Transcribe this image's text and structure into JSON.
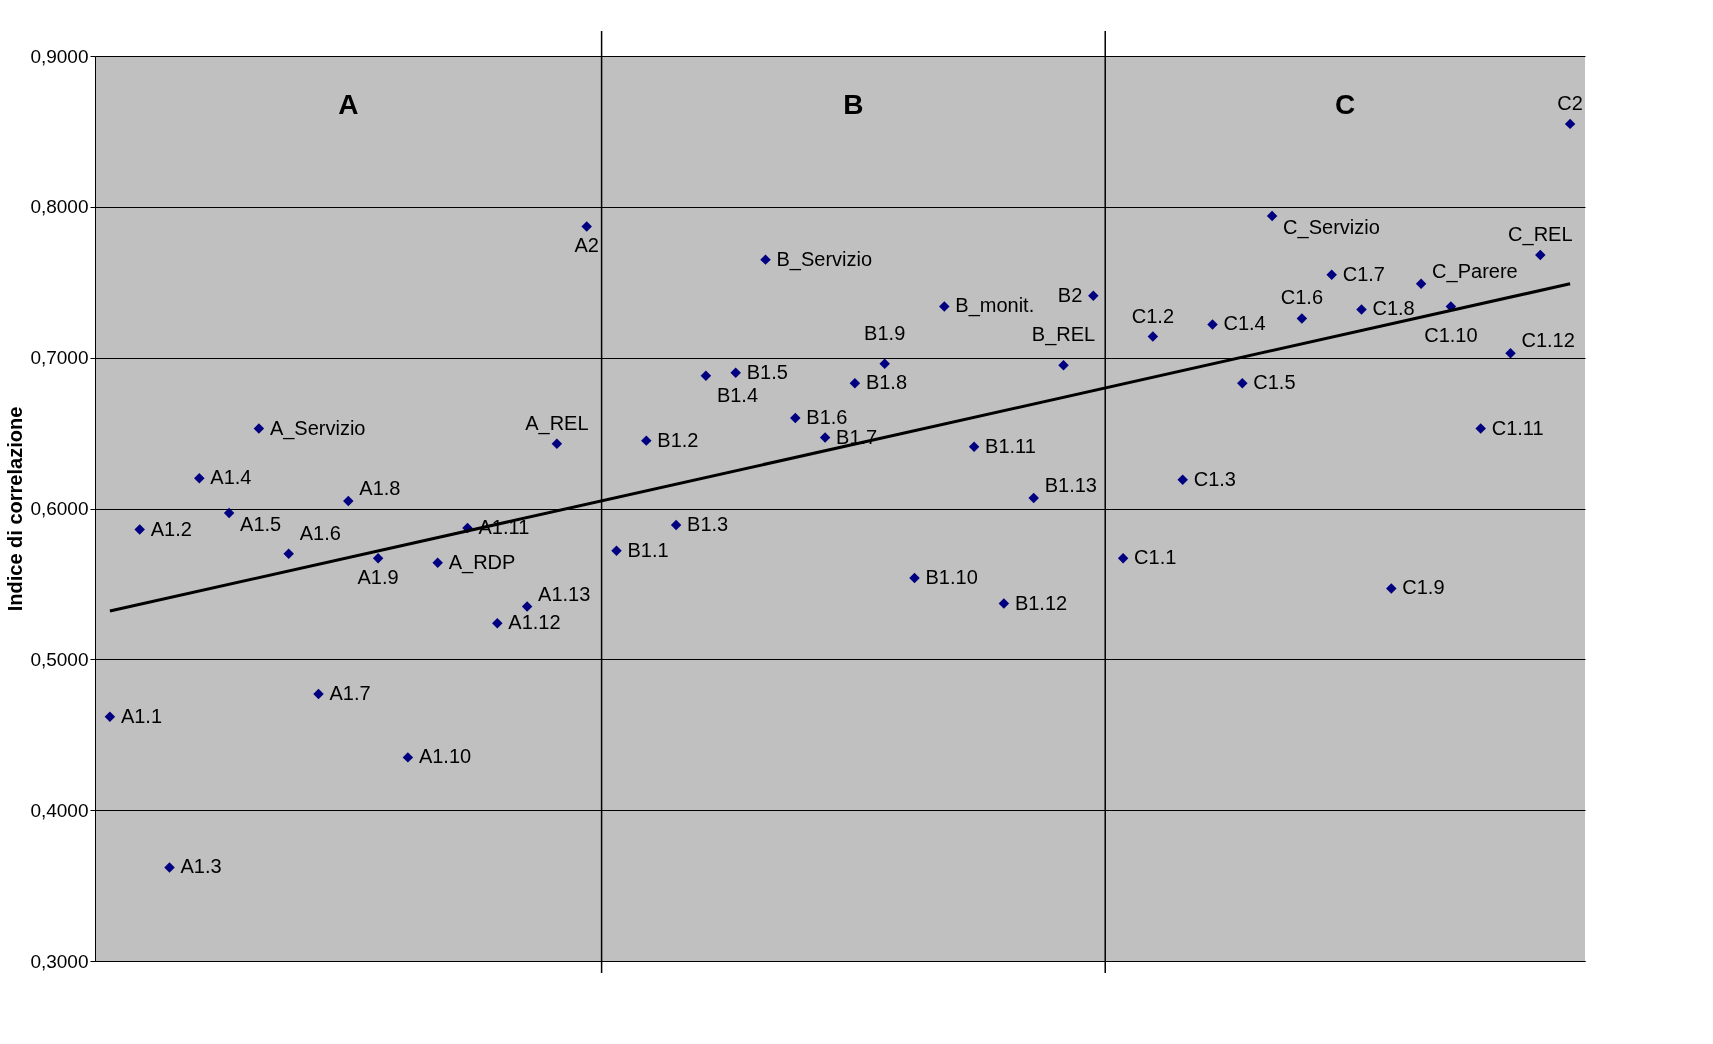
{
  "chart_data": {
    "type": "scatter",
    "ylabel": "Indice di correlazione",
    "marker": "diamond",
    "grid": "y",
    "tick_labels": "y",
    "categories": [
      null,
      null,
      null,
      null,
      null,
      null,
      null,
      null,
      null,
      null,
      null,
      null,
      null,
      null,
      null,
      null,
      null,
      null,
      null,
      null,
      null,
      null,
      null,
      null,
      null,
      null,
      null,
      null,
      null,
      null,
      null,
      null,
      null,
      null,
      null,
      null,
      null,
      null,
      null,
      null,
      null,
      null,
      null,
      null,
      null,
      null,
      null,
      null,
      null,
      null
    ],
    "ylim": [
      0.3,
      0.9
    ],
    "yticks": [
      {
        "value": 0.3,
        "label": "0,3000"
      },
      {
        "value": 0.4,
        "label": "0,4000"
      },
      {
        "value": 0.5,
        "label": "0,5000"
      },
      {
        "value": 0.6,
        "label": "0,6000"
      },
      {
        "value": 0.7,
        "label": "0,7000"
      },
      {
        "value": 0.8,
        "label": "0,8000"
      },
      {
        "value": 0.9,
        "label": "0,9000"
      }
    ],
    "annotations": [
      "A",
      "B",
      "C"
    ],
    "series": [
      {
        "color": "#000080",
        "values": [
          0.462,
          0.586,
          0.362,
          0.62,
          0.597,
          0.653,
          0.57,
          0.477,
          0.605,
          0.567,
          0.435,
          0.564,
          0.587,
          0.524,
          0.535,
          0.643,
          0.787,
          0.572,
          0.645,
          0.589,
          0.688,
          0.69,
          0.765,
          0.66,
          0.647,
          0.683,
          0.696,
          0.554,
          0.734,
          0.641,
          0.537,
          0.607,
          0.695,
          0.741,
          0.567,
          0.714,
          0.619,
          0.722,
          0.683,
          0.794,
          0.726,
          0.755,
          0.732,
          0.547,
          0.749,
          0.734,
          0.653,
          0.703,
          0.768,
          0.855
        ],
        "value_labels": [
          "A1.1",
          "A1.2",
          "A1.3",
          "A1.4",
          "A1.5",
          "A_Servizio",
          "A1.6",
          "A1.7",
          "A1.8",
          "A1.9",
          "A1.10",
          "A_RDP",
          "A1.11",
          "A1.12",
          "A1.13",
          "A_REL",
          "A2",
          "B1.1",
          "B1.2",
          "B1.3",
          "B1.4",
          "B1.5",
          "B_Servizio",
          "B1.6",
          "B1.7",
          "B1.8",
          "B1.9",
          "B1.10",
          "B_monit.",
          "B1.11",
          "B1.12",
          "B1.13",
          "B_REL",
          "B2",
          "C1.1",
          "C1.2",
          "C1.3",
          "C1.4",
          "C1.5",
          "C_Servizio",
          "C1.6",
          "C1.7",
          "C1.8",
          "C1.9",
          "C_Parere",
          "C1.10",
          "C1.11",
          "C1.12",
          "C_REL",
          "C2"
        ]
      },
      {
        "type": "line",
        "color": "#000000",
        "marker": "none",
        "values": [
          0.532,
          null,
          null,
          null,
          null,
          null,
          null,
          null,
          null,
          null,
          null,
          null,
          null,
          null,
          null,
          null,
          null,
          null,
          null,
          null,
          null,
          null,
          null,
          null,
          null,
          null,
          null,
          null,
          null,
          null,
          null,
          null,
          null,
          null,
          null,
          null,
          null,
          null,
          null,
          null,
          null,
          null,
          null,
          null,
          null,
          null,
          null,
          null,
          null,
          0.749
        ]
      }
    ]
  }
}
